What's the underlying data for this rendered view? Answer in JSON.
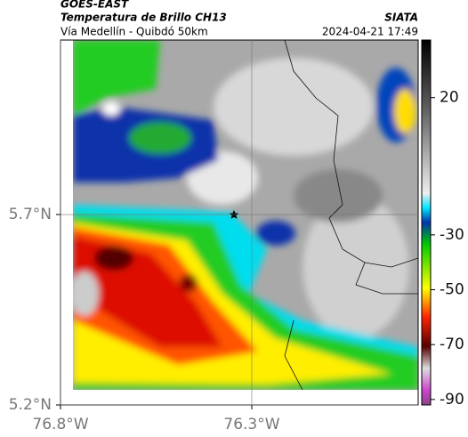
{
  "header": {
    "source": "GOES-EAST",
    "title": "Temperatura de Brillo CH13",
    "brand": "SIATA",
    "subtitle": "Vía Medellín - Quibdó 50km",
    "timestamp": "2024-04-21 17:49"
  },
  "map": {
    "xlim": [
      -76.8,
      -75.865
    ],
    "ylim": [
      5.2,
      6.158
    ],
    "xticks": [
      {
        "value": -76.8,
        "label": "76.8°W"
      },
      {
        "value": -76.3,
        "label": "76.3°W"
      }
    ],
    "yticks": [
      {
        "value": 5.2,
        "label": "5.2°N"
      },
      {
        "value": 5.7,
        "label": "5.7°N"
      }
    ],
    "grid": true
  },
  "colorbar": {
    "lim": [
      -92,
      41
    ],
    "ticks": [
      20,
      -30,
      -50,
      -70,
      -90
    ]
  }
}
